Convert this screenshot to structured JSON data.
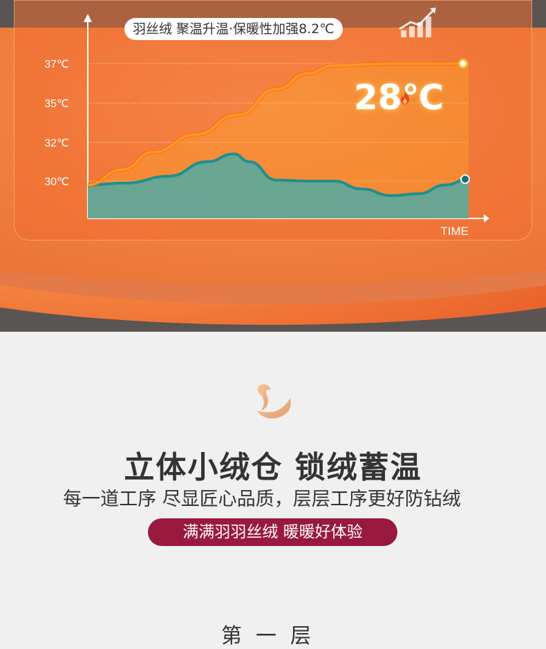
{
  "banner": {
    "title": "羽丝绒 聚温升温·保暖性加强8.2℃",
    "overlay_value": "28℃",
    "overlay_digits": "28",
    "overlay_unit": "℃"
  },
  "chart_data": {
    "type": "area",
    "title": "羽丝绒 聚温升温·保暖性加强8.2℃",
    "xlabel": "TIME",
    "ylabel": "",
    "yticks": [
      {
        "label": "37℃",
        "value": 37
      },
      {
        "label": "35℃",
        "value": 35
      },
      {
        "label": "32℃",
        "value": 32
      },
      {
        "label": "30℃",
        "value": 30
      }
    ],
    "grid": true,
    "series": [
      {
        "color": "#ff9a20",
        "x": [
          0,
          9,
          17,
          28,
          39,
          49,
          57,
          64,
          79,
          99
        ],
        "y": [
          29.8,
          30.6,
          31.5,
          32.6,
          34.1,
          35.7,
          36.5,
          36.9,
          37,
          37
        ]
      },
      {
        "color": "#1f8f90",
        "fill": "#5aa89c",
        "x": [
          0,
          10,
          21,
          31,
          38,
          42,
          49,
          57,
          64,
          71,
          79,
          86,
          93,
          99
        ],
        "y": [
          29.8,
          29.9,
          30.25,
          31.0,
          31.4,
          31.0,
          30.05,
          30,
          30,
          29.6,
          29.25,
          29.35,
          29.8,
          30.1
        ]
      }
    ]
  },
  "section": {
    "headline": "立体小绒仓 锁绒蓄温",
    "subtitle": "每一道工序 尽显匠心品质，层层工序更好防钻绒",
    "pill": "满满羽羽丝绒 暖暖好体验",
    "next_heading": "第一层"
  },
  "colors": {
    "accent": "#99193f",
    "orange": "#f08040",
    "teal": "#1f8f90"
  }
}
